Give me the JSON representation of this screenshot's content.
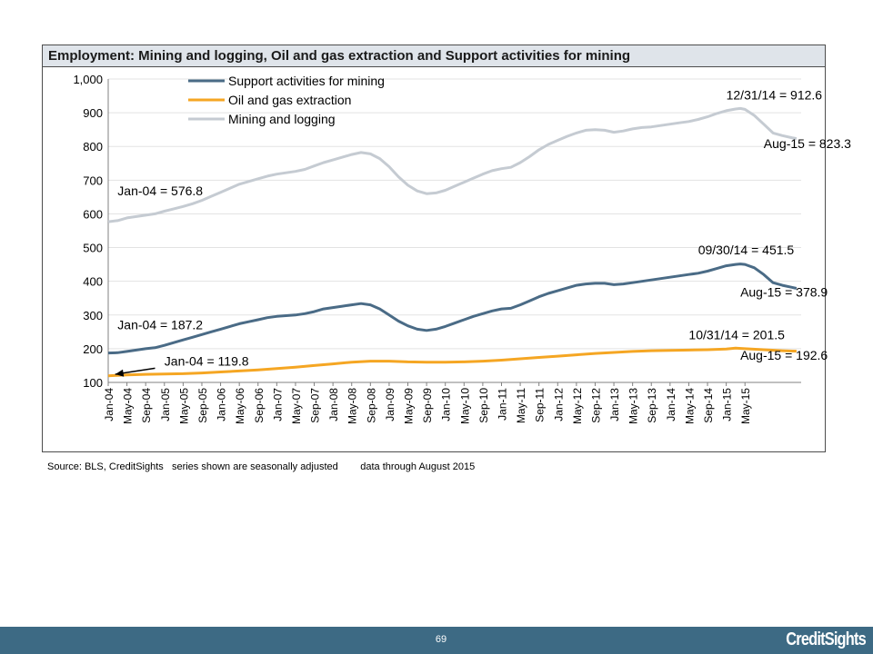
{
  "header": {
    "title": "Employment: Mining and logging, Oil and gas extraction and Support activities for mining"
  },
  "footer": {
    "page_number": "69",
    "logo_text": "CreditSights",
    "bar_color": "#3d6a84"
  },
  "source_note": "Source: BLS, CreditSights   series shown are seasonally adjusted        data through August 2015",
  "chart_data": {
    "type": "line",
    "title": "Employment: Mining and logging, Oil and gas extraction and Support activities for mining",
    "xlabel": "",
    "ylabel": "",
    "ylim": [
      100,
      1000
    ],
    "yticks": [
      "100",
      "200",
      "300",
      "400",
      "500",
      "600",
      "700",
      "800",
      "900",
      "1,000"
    ],
    "xticks": [
      "Jan-04",
      "May-04",
      "Sep-04",
      "Jan-05",
      "May-05",
      "Sep-05",
      "Jan-06",
      "May-06",
      "Sep-06",
      "Jan-07",
      "May-07",
      "Sep-07",
      "Jan-08",
      "May-08",
      "Sep-08",
      "Jan-09",
      "May-09",
      "Sep-09",
      "Jan-10",
      "May-10",
      "Sep-10",
      "Jan-11",
      "May-11",
      "Sep-11",
      "Jan-12",
      "May-12",
      "Sep-12",
      "Jan-13",
      "May-13",
      "Sep-13",
      "Jan-14",
      "May-14",
      "Sep-14",
      "Jan-15",
      "May-15"
    ],
    "grid": true,
    "legend_position": "top-left",
    "series": [
      {
        "name": "Support activities for mining",
        "color": "#4a6b86",
        "values": [
          [
            0,
            187.2
          ],
          [
            2,
            188
          ],
          [
            4,
            192
          ],
          [
            6,
            196
          ],
          [
            8,
            200
          ],
          [
            10,
            203
          ],
          [
            12,
            210
          ],
          [
            14,
            218
          ],
          [
            16,
            226
          ],
          [
            18,
            234
          ],
          [
            20,
            242
          ],
          [
            22,
            250
          ],
          [
            24,
            258
          ],
          [
            26,
            266
          ],
          [
            28,
            274
          ],
          [
            30,
            280
          ],
          [
            32,
            286
          ],
          [
            34,
            292
          ],
          [
            36,
            296
          ],
          [
            38,
            298
          ],
          [
            40,
            300
          ],
          [
            42,
            304
          ],
          [
            44,
            310
          ],
          [
            46,
            318
          ],
          [
            48,
            322
          ],
          [
            50,
            326
          ],
          [
            52,
            330
          ],
          [
            54,
            334
          ],
          [
            56,
            330
          ],
          [
            58,
            318
          ],
          [
            60,
            300
          ],
          [
            62,
            282
          ],
          [
            64,
            268
          ],
          [
            66,
            258
          ],
          [
            68,
            254
          ],
          [
            70,
            258
          ],
          [
            72,
            266
          ],
          [
            74,
            276
          ],
          [
            76,
            286
          ],
          [
            78,
            296
          ],
          [
            80,
            304
          ],
          [
            82,
            312
          ],
          [
            84,
            318
          ],
          [
            86,
            320
          ],
          [
            88,
            330
          ],
          [
            90,
            342
          ],
          [
            92,
            354
          ],
          [
            94,
            364
          ],
          [
            96,
            372
          ],
          [
            98,
            380
          ],
          [
            100,
            388
          ],
          [
            102,
            392
          ],
          [
            104,
            394
          ],
          [
            106,
            394
          ],
          [
            108,
            390
          ],
          [
            110,
            392
          ],
          [
            112,
            396
          ],
          [
            114,
            400
          ],
          [
            116,
            404
          ],
          [
            118,
            408
          ],
          [
            120,
            412
          ],
          [
            122,
            416
          ],
          [
            124,
            420
          ],
          [
            126,
            424
          ],
          [
            128,
            430
          ],
          [
            130,
            438
          ],
          [
            132,
            446
          ],
          [
            134,
            450
          ],
          [
            135,
            451.5
          ],
          [
            136,
            450
          ],
          [
            138,
            440
          ],
          [
            140,
            420
          ],
          [
            142,
            396
          ],
          [
            144,
            388
          ],
          [
            146,
            382
          ],
          [
            147,
            378.9
          ]
        ]
      },
      {
        "name": "Oil and gas extraction",
        "color": "#f5a623",
        "values": [
          [
            0,
            119.8
          ],
          [
            4,
            122
          ],
          [
            8,
            124
          ],
          [
            12,
            125
          ],
          [
            16,
            126
          ],
          [
            20,
            128
          ],
          [
            24,
            131
          ],
          [
            28,
            134
          ],
          [
            32,
            137
          ],
          [
            36,
            141
          ],
          [
            40,
            145
          ],
          [
            44,
            150
          ],
          [
            48,
            155
          ],
          [
            52,
            160
          ],
          [
            56,
            163
          ],
          [
            60,
            163
          ],
          [
            64,
            161
          ],
          [
            68,
            160
          ],
          [
            72,
            160
          ],
          [
            76,
            161
          ],
          [
            80,
            163
          ],
          [
            84,
            166
          ],
          [
            88,
            170
          ],
          [
            92,
            174
          ],
          [
            96,
            178
          ],
          [
            100,
            182
          ],
          [
            104,
            186
          ],
          [
            108,
            189
          ],
          [
            112,
            192
          ],
          [
            116,
            194
          ],
          [
            120,
            195
          ],
          [
            124,
            196
          ],
          [
            128,
            197
          ],
          [
            132,
            199
          ],
          [
            134,
            201.5
          ],
          [
            136,
            200
          ],
          [
            140,
            197
          ],
          [
            144,
            194
          ],
          [
            147,
            192.6
          ]
        ]
      },
      {
        "name": "Mining and logging",
        "color": "#c5cbd2",
        "values": [
          [
            0,
            576.8
          ],
          [
            2,
            580
          ],
          [
            4,
            588
          ],
          [
            6,
            592
          ],
          [
            8,
            596
          ],
          [
            10,
            600
          ],
          [
            12,
            608
          ],
          [
            14,
            615
          ],
          [
            16,
            622
          ],
          [
            18,
            630
          ],
          [
            20,
            640
          ],
          [
            22,
            652
          ],
          [
            24,
            664
          ],
          [
            26,
            676
          ],
          [
            28,
            688
          ],
          [
            30,
            696
          ],
          [
            32,
            704
          ],
          [
            34,
            712
          ],
          [
            36,
            718
          ],
          [
            38,
            722
          ],
          [
            40,
            726
          ],
          [
            42,
            732
          ],
          [
            44,
            742
          ],
          [
            46,
            752
          ],
          [
            48,
            760
          ],
          [
            50,
            768
          ],
          [
            52,
            776
          ],
          [
            54,
            782
          ],
          [
            56,
            778
          ],
          [
            58,
            764
          ],
          [
            60,
            740
          ],
          [
            62,
            710
          ],
          [
            64,
            685
          ],
          [
            66,
            668
          ],
          [
            68,
            660
          ],
          [
            70,
            662
          ],
          [
            72,
            670
          ],
          [
            74,
            682
          ],
          [
            76,
            694
          ],
          [
            78,
            706
          ],
          [
            80,
            718
          ],
          [
            82,
            728
          ],
          [
            84,
            734
          ],
          [
            86,
            738
          ],
          [
            88,
            752
          ],
          [
            90,
            770
          ],
          [
            92,
            790
          ],
          [
            94,
            806
          ],
          [
            96,
            818
          ],
          [
            98,
            830
          ],
          [
            100,
            840
          ],
          [
            102,
            848
          ],
          [
            104,
            850
          ],
          [
            106,
            848
          ],
          [
            108,
            842
          ],
          [
            110,
            846
          ],
          [
            112,
            852
          ],
          [
            114,
            856
          ],
          [
            116,
            858
          ],
          [
            118,
            862
          ],
          [
            120,
            866
          ],
          [
            122,
            870
          ],
          [
            124,
            874
          ],
          [
            126,
            880
          ],
          [
            128,
            888
          ],
          [
            130,
            898
          ],
          [
            132,
            906
          ],
          [
            134,
            911
          ],
          [
            135,
            912.6
          ],
          [
            136,
            910
          ],
          [
            138,
            892
          ],
          [
            140,
            866
          ],
          [
            142,
            840
          ],
          [
            144,
            832
          ],
          [
            146,
            826
          ],
          [
            147,
            823.3
          ]
        ]
      }
    ],
    "annotations": [
      {
        "text": "12/31/14 = 912.6",
        "x": 132,
        "y": 940
      },
      {
        "text": "Aug-15 = 823.3",
        "x": 140,
        "y": 795
      },
      {
        "text": "Jan-04 = 576.8",
        "x": 2,
        "y": 655
      },
      {
        "text": "09/30/14 = 451.5",
        "x": 126,
        "y": 480
      },
      {
        "text": "Aug-15 = 378.9",
        "x": 135,
        "y": 355
      },
      {
        "text": "Jan-04 = 187.2",
        "x": 2,
        "y": 258
      },
      {
        "text": "10/31/14 = 201.5",
        "x": 124,
        "y": 228
      },
      {
        "text": "Aug-15 = 192.6",
        "x": 135,
        "y": 167
      },
      {
        "text": "Jan-04 = 119.8",
        "x": 12,
        "y": 150
      }
    ],
    "x_range": [
      0,
      148
    ]
  }
}
